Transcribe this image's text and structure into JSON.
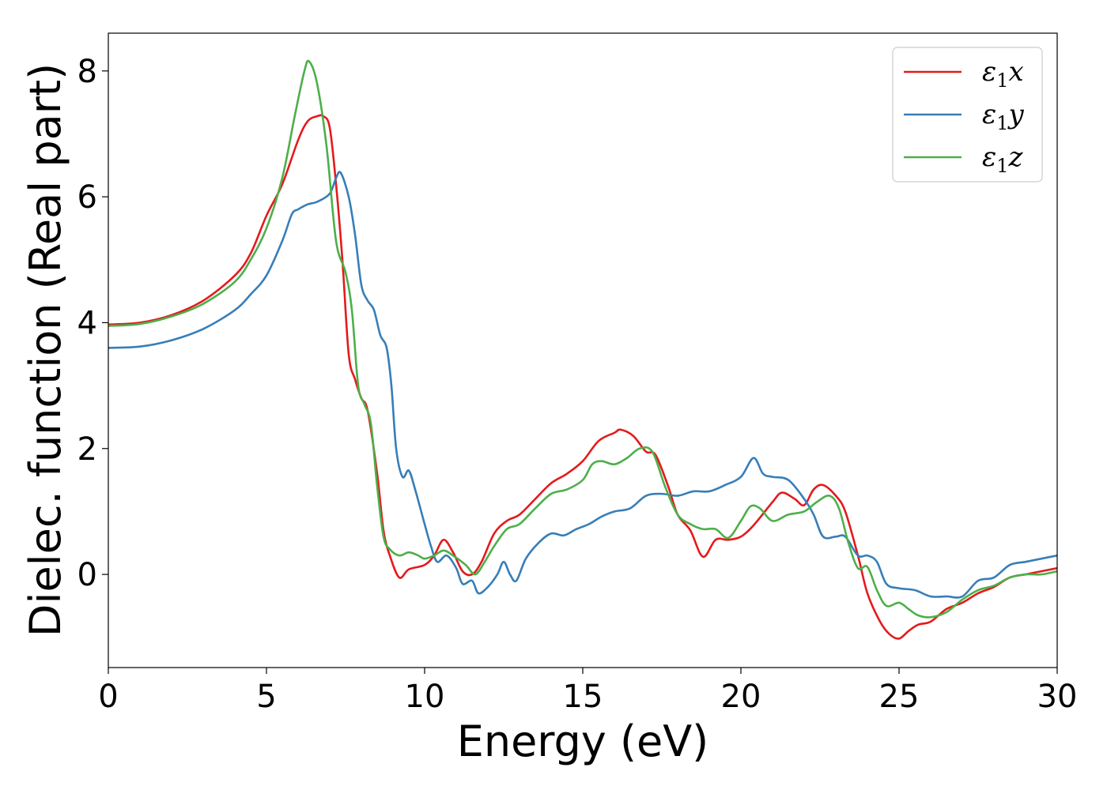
{
  "chart_data": {
    "type": "line",
    "xlabel": "Energy (eV)",
    "ylabel": "Dielec. function (Real part)",
    "xlim": [
      0,
      30
    ],
    "ylim": [
      -1.48,
      8.6
    ],
    "xticks": [
      0,
      5,
      10,
      15,
      20,
      25,
      30
    ],
    "yticks": [
      0,
      2,
      4,
      6,
      8
    ],
    "grid": false,
    "legend_position": "top-right",
    "series": [
      {
        "name": "ε₁x",
        "legend_symbol": "ε",
        "legend_sub": "1",
        "legend_var": "x",
        "color": "#e41a1c",
        "points": [
          [
            0,
            3.97
          ],
          [
            1,
            4.0
          ],
          [
            2,
            4.12
          ],
          [
            3,
            4.35
          ],
          [
            4,
            4.75
          ],
          [
            4.5,
            5.1
          ],
          [
            5,
            5.7
          ],
          [
            5.5,
            6.2
          ],
          [
            6,
            6.9
          ],
          [
            6.3,
            7.2
          ],
          [
            6.6,
            7.28
          ],
          [
            6.8,
            7.28
          ],
          [
            7,
            7.1
          ],
          [
            7.2,
            6.2
          ],
          [
            7.4,
            5.0
          ],
          [
            7.6,
            3.5
          ],
          [
            7.8,
            3.1
          ],
          [
            8,
            2.8
          ],
          [
            8.2,
            2.6
          ],
          [
            8.5,
            1.6
          ],
          [
            8.7,
            0.7
          ],
          [
            8.9,
            0.3
          ],
          [
            9.2,
            -0.05
          ],
          [
            9.5,
            0.08
          ],
          [
            10,
            0.15
          ],
          [
            10.3,
            0.3
          ],
          [
            10.6,
            0.55
          ],
          [
            10.9,
            0.35
          ],
          [
            11.2,
            0.05
          ],
          [
            11.5,
            0.0
          ],
          [
            11.8,
            0.2
          ],
          [
            12.2,
            0.65
          ],
          [
            12.6,
            0.85
          ],
          [
            13,
            0.95
          ],
          [
            13.5,
            1.2
          ],
          [
            14,
            1.45
          ],
          [
            14.5,
            1.6
          ],
          [
            15,
            1.8
          ],
          [
            15.5,
            2.12
          ],
          [
            16,
            2.25
          ],
          [
            16.2,
            2.3
          ],
          [
            16.6,
            2.2
          ],
          [
            17,
            1.95
          ],
          [
            17.3,
            1.9
          ],
          [
            17.7,
            1.4
          ],
          [
            18,
            0.95
          ],
          [
            18.4,
            0.7
          ],
          [
            18.8,
            0.28
          ],
          [
            19.2,
            0.55
          ],
          [
            19.6,
            0.55
          ],
          [
            20,
            0.6
          ],
          [
            20.4,
            0.78
          ],
          [
            21,
            1.15
          ],
          [
            21.3,
            1.3
          ],
          [
            21.7,
            1.2
          ],
          [
            22,
            1.1
          ],
          [
            22.3,
            1.35
          ],
          [
            22.6,
            1.42
          ],
          [
            23,
            1.25
          ],
          [
            23.3,
            1.0
          ],
          [
            23.7,
            0.3
          ],
          [
            24,
            -0.3
          ],
          [
            24.4,
            -0.75
          ],
          [
            24.7,
            -0.95
          ],
          [
            25,
            -1.02
          ],
          [
            25.3,
            -0.9
          ],
          [
            25.6,
            -0.8
          ],
          [
            26,
            -0.75
          ],
          [
            26.5,
            -0.55
          ],
          [
            27,
            -0.45
          ],
          [
            27.5,
            -0.3
          ],
          [
            28,
            -0.2
          ],
          [
            28.5,
            -0.05
          ],
          [
            29,
            0.0
          ],
          [
            29.5,
            0.05
          ],
          [
            30,
            0.1
          ]
        ]
      },
      {
        "name": "ε₁y",
        "legend_symbol": "ε",
        "legend_sub": "1",
        "legend_var": "y",
        "color": "#377eb8",
        "points": [
          [
            0,
            3.6
          ],
          [
            1,
            3.62
          ],
          [
            2,
            3.72
          ],
          [
            3,
            3.9
          ],
          [
            4,
            4.2
          ],
          [
            4.5,
            4.45
          ],
          [
            5,
            4.75
          ],
          [
            5.5,
            5.3
          ],
          [
            5.8,
            5.72
          ],
          [
            6,
            5.8
          ],
          [
            6.3,
            5.88
          ],
          [
            6.6,
            5.92
          ],
          [
            7,
            6.05
          ],
          [
            7.2,
            6.3
          ],
          [
            7.35,
            6.38
          ],
          [
            7.6,
            6.0
          ],
          [
            7.8,
            5.4
          ],
          [
            8,
            4.6
          ],
          [
            8.2,
            4.35
          ],
          [
            8.4,
            4.2
          ],
          [
            8.6,
            3.8
          ],
          [
            8.8,
            3.6
          ],
          [
            8.95,
            3.0
          ],
          [
            9.1,
            2.0
          ],
          [
            9.3,
            1.55
          ],
          [
            9.5,
            1.65
          ],
          [
            9.7,
            1.35
          ],
          [
            10,
            0.8
          ],
          [
            10.2,
            0.45
          ],
          [
            10.4,
            0.2
          ],
          [
            10.7,
            0.3
          ],
          [
            11,
            0.1
          ],
          [
            11.2,
            -0.15
          ],
          [
            11.5,
            -0.1
          ],
          [
            11.7,
            -0.3
          ],
          [
            12,
            -0.2
          ],
          [
            12.3,
            0.0
          ],
          [
            12.5,
            0.2
          ],
          [
            12.7,
            0.0
          ],
          [
            12.9,
            -0.1
          ],
          [
            13.2,
            0.25
          ],
          [
            13.6,
            0.5
          ],
          [
            14,
            0.65
          ],
          [
            14.4,
            0.62
          ],
          [
            14.8,
            0.72
          ],
          [
            15.2,
            0.8
          ],
          [
            15.6,
            0.92
          ],
          [
            16,
            1.0
          ],
          [
            16.5,
            1.05
          ],
          [
            17,
            1.25
          ],
          [
            17.5,
            1.28
          ],
          [
            18,
            1.25
          ],
          [
            18.5,
            1.32
          ],
          [
            19,
            1.32
          ],
          [
            19.5,
            1.42
          ],
          [
            20,
            1.55
          ],
          [
            20.4,
            1.85
          ],
          [
            20.7,
            1.6
          ],
          [
            21,
            1.55
          ],
          [
            21.5,
            1.5
          ],
          [
            22,
            1.2
          ],
          [
            22.3,
            0.95
          ],
          [
            22.6,
            0.6
          ],
          [
            23,
            0.6
          ],
          [
            23.3,
            0.6
          ],
          [
            23.7,
            0.3
          ],
          [
            24,
            0.3
          ],
          [
            24.3,
            0.2
          ],
          [
            24.6,
            -0.15
          ],
          [
            25,
            -0.22
          ],
          [
            25.5,
            -0.25
          ],
          [
            26,
            -0.35
          ],
          [
            26.5,
            -0.35
          ],
          [
            27,
            -0.35
          ],
          [
            27.5,
            -0.1
          ],
          [
            28,
            -0.05
          ],
          [
            28.5,
            0.15
          ],
          [
            29,
            0.2
          ],
          [
            29.5,
            0.25
          ],
          [
            30,
            0.3
          ]
        ]
      },
      {
        "name": "ε₁z",
        "legend_symbol": "ε",
        "legend_sub": "1",
        "legend_var": "z",
        "color": "#4daf4a",
        "points": [
          [
            0,
            3.95
          ],
          [
            1,
            3.98
          ],
          [
            2,
            4.1
          ],
          [
            3,
            4.3
          ],
          [
            4,
            4.65
          ],
          [
            4.5,
            5.0
          ],
          [
            5,
            5.5
          ],
          [
            5.5,
            6.3
          ],
          [
            5.9,
            7.3
          ],
          [
            6.2,
            8.0
          ],
          [
            6.35,
            8.15
          ],
          [
            6.6,
            7.8
          ],
          [
            6.9,
            6.8
          ],
          [
            7.2,
            5.3
          ],
          [
            7.5,
            4.8
          ],
          [
            7.7,
            4.2
          ],
          [
            7.9,
            3.0
          ],
          [
            8.1,
            2.7
          ],
          [
            8.3,
            2.4
          ],
          [
            8.5,
            1.4
          ],
          [
            8.7,
            0.6
          ],
          [
            8.9,
            0.4
          ],
          [
            9.2,
            0.3
          ],
          [
            9.5,
            0.35
          ],
          [
            9.8,
            0.3
          ],
          [
            10,
            0.25
          ],
          [
            10.3,
            0.3
          ],
          [
            10.6,
            0.38
          ],
          [
            10.9,
            0.3
          ],
          [
            11.3,
            0.15
          ],
          [
            11.6,
            0.0
          ],
          [
            11.9,
            0.2
          ],
          [
            12.2,
            0.45
          ],
          [
            12.6,
            0.72
          ],
          [
            13,
            0.8
          ],
          [
            13.5,
            1.05
          ],
          [
            14,
            1.28
          ],
          [
            14.5,
            1.35
          ],
          [
            15,
            1.5
          ],
          [
            15.3,
            1.75
          ],
          [
            15.6,
            1.8
          ],
          [
            16,
            1.75
          ],
          [
            16.4,
            1.85
          ],
          [
            16.8,
            2.0
          ],
          [
            17.2,
            1.95
          ],
          [
            17.6,
            1.4
          ],
          [
            18,
            0.95
          ],
          [
            18.4,
            0.8
          ],
          [
            18.8,
            0.72
          ],
          [
            19.2,
            0.72
          ],
          [
            19.6,
            0.58
          ],
          [
            20,
            0.85
          ],
          [
            20.3,
            1.08
          ],
          [
            20.6,
            1.05
          ],
          [
            21,
            0.85
          ],
          [
            21.5,
            0.95
          ],
          [
            22,
            1.0
          ],
          [
            22.4,
            1.15
          ],
          [
            22.8,
            1.25
          ],
          [
            23.1,
            1.05
          ],
          [
            23.4,
            0.5
          ],
          [
            23.7,
            0.1
          ],
          [
            24,
            0.12
          ],
          [
            24.3,
            -0.25
          ],
          [
            24.6,
            -0.5
          ],
          [
            25,
            -0.45
          ],
          [
            25.3,
            -0.55
          ],
          [
            25.6,
            -0.65
          ],
          [
            26,
            -0.68
          ],
          [
            26.5,
            -0.6
          ],
          [
            27,
            -0.4
          ],
          [
            27.5,
            -0.25
          ],
          [
            28,
            -0.18
          ],
          [
            28.5,
            -0.05
          ],
          [
            29,
            0.0
          ],
          [
            29.5,
            0.0
          ],
          [
            30,
            0.05
          ]
        ]
      }
    ]
  }
}
